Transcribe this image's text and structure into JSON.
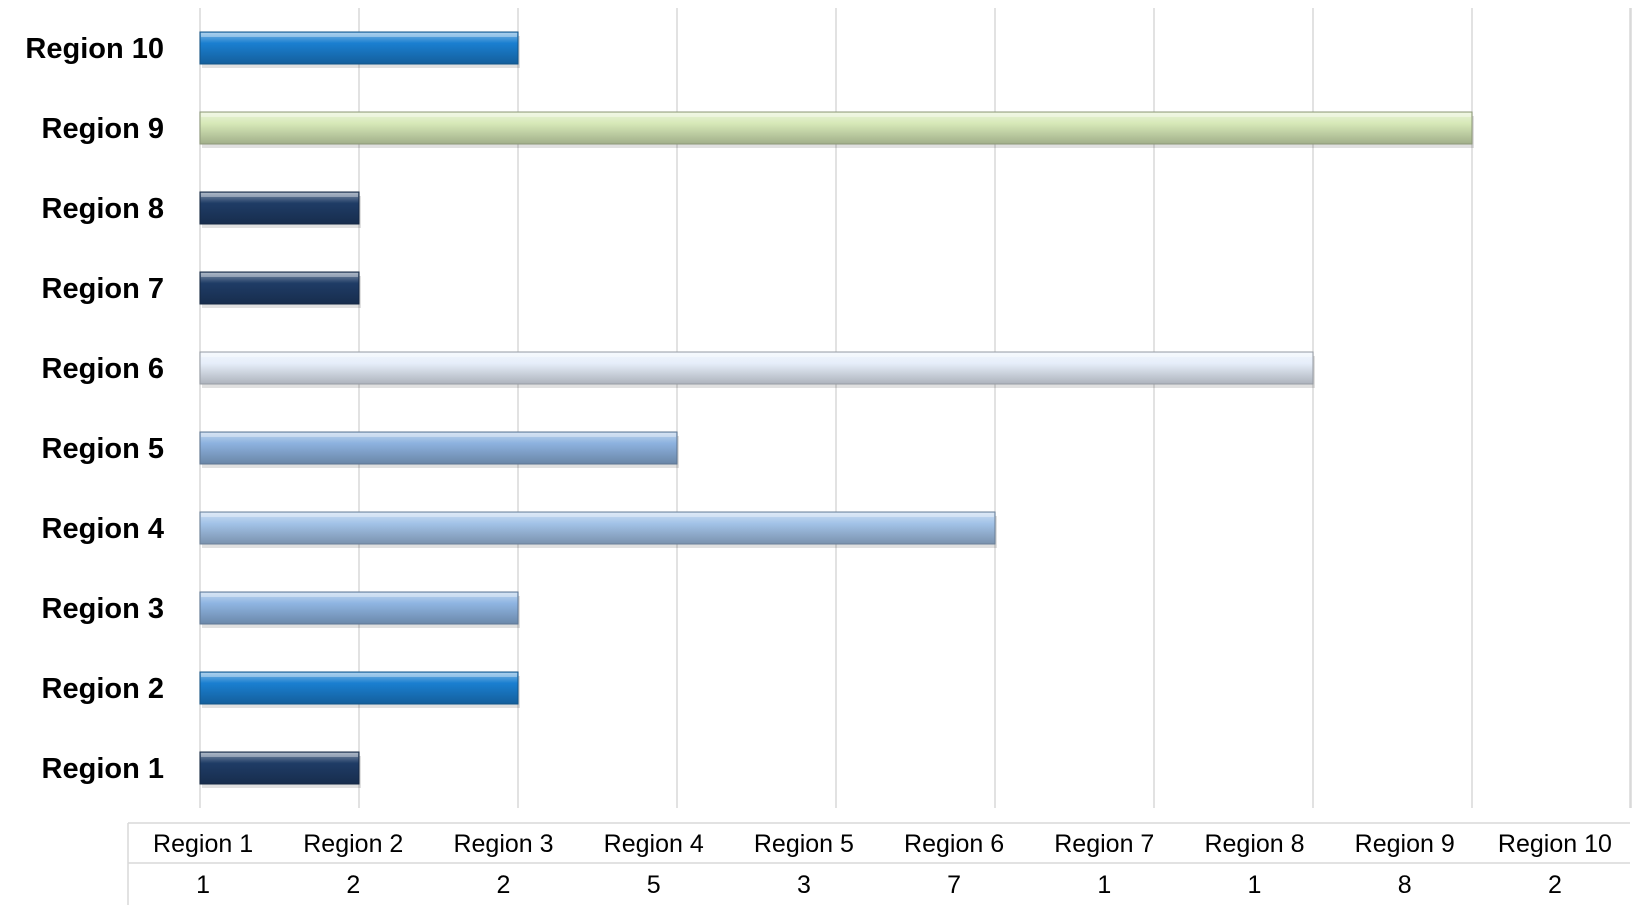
{
  "chart_data": {
    "type": "bar",
    "orientation": "horizontal",
    "categories": [
      "Region 1",
      "Region 2",
      "Region 3",
      "Region 4",
      "Region 5",
      "Region 6",
      "Region 7",
      "Region 8",
      "Region 9",
      "Region 10"
    ],
    "values": [
      1,
      2,
      2,
      5,
      3,
      7,
      1,
      1,
      8,
      2
    ],
    "bar_colors": [
      "#1f3c66",
      "#1a7fd0",
      "#8fb5e2",
      "#a3c3e8",
      "#8db2df",
      "#e6eefa",
      "#1f3c66",
      "#1f3c66",
      "#d7e9b8",
      "#1a7fd0"
    ],
    "xlim": [
      0,
      9
    ],
    "title": "",
    "xlabel": "",
    "ylabel": "",
    "grid": true,
    "data_table": {
      "headers": [
        "Region 1",
        "Region 2",
        "Region 3",
        "Region 4",
        "Region 5",
        "Region 6",
        "Region 7",
        "Region 8",
        "Region 9",
        "Region 10"
      ],
      "values": [
        "1",
        "2",
        "2",
        "5",
        "3",
        "7",
        "1",
        "1",
        "8",
        "2"
      ]
    }
  }
}
